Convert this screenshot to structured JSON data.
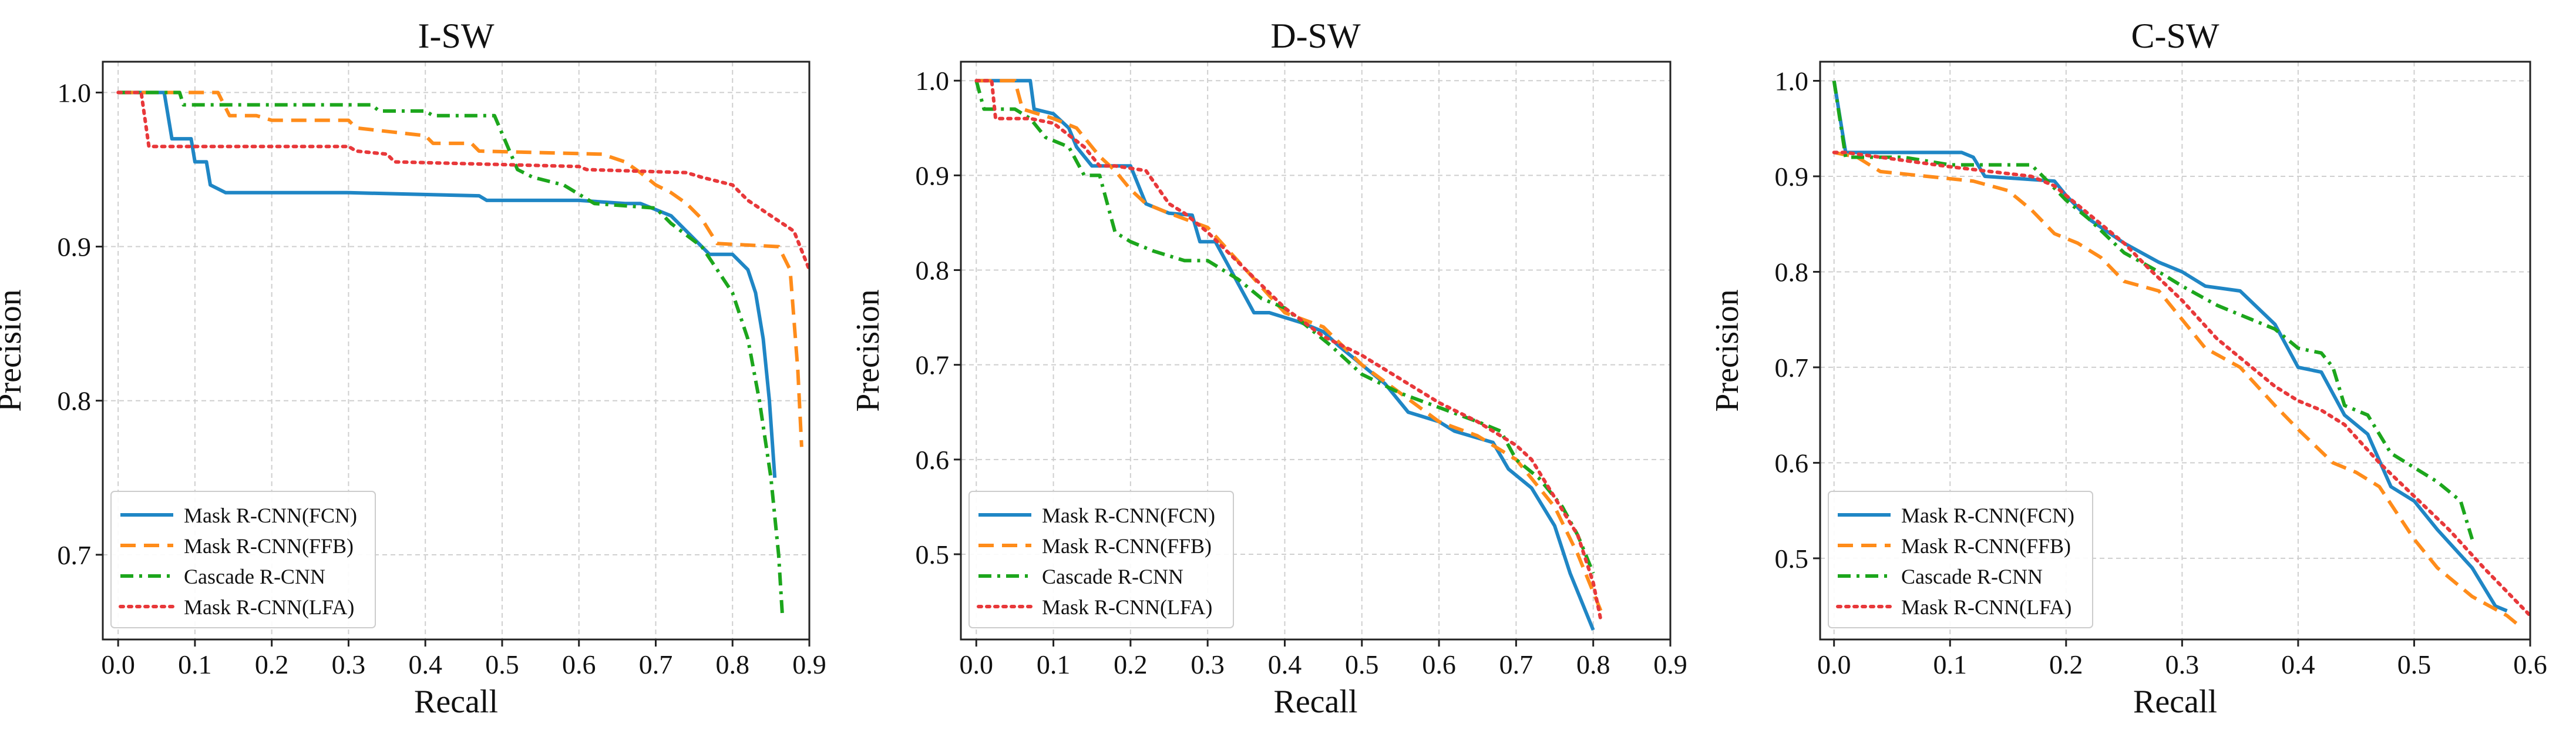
{
  "chart_data": [
    {
      "type": "line",
      "title": "I-SW",
      "xlabel": "Recall",
      "ylabel": "Precision",
      "xlim": [
        -0.02,
        0.9
      ],
      "ylim": [
        0.645,
        1.02
      ],
      "xticks": [
        0.0,
        0.1,
        0.2,
        0.3,
        0.4,
        0.5,
        0.6,
        0.7,
        0.8,
        0.9
      ],
      "xtick_labels": [
        "0.0",
        "0.1",
        "0.2",
        "0.3",
        "0.4",
        "0.5",
        "0.6",
        "0.7",
        "0.8",
        "0.9"
      ],
      "yticks": [
        0.7,
        0.8,
        0.9,
        1.0
      ],
      "ytick_labels": [
        "0.7",
        "0.8",
        "0.9",
        "1.0"
      ],
      "grid": true,
      "legend_position": "lower-left",
      "series": [
        {
          "name": "Mask R-CNN(FCN)",
          "color": "#1f86c5",
          "style": "solid",
          "x": [
            0.0,
            0.06,
            0.07,
            0.095,
            0.1,
            0.115,
            0.12,
            0.14,
            0.3,
            0.47,
            0.48,
            0.6,
            0.66,
            0.68,
            0.72,
            0.75,
            0.77,
            0.8,
            0.82,
            0.83,
            0.84,
            0.848,
            0.855
          ],
          "y": [
            1.0,
            1.0,
            0.97,
            0.97,
            0.955,
            0.955,
            0.94,
            0.935,
            0.935,
            0.933,
            0.93,
            0.93,
            0.928,
            0.928,
            0.92,
            0.905,
            0.895,
            0.895,
            0.885,
            0.87,
            0.84,
            0.8,
            0.75
          ]
        },
        {
          "name": "Mask R-CNN(FFB)",
          "color": "#ff8c1a",
          "style": "dashed",
          "x": [
            0.0,
            0.13,
            0.145,
            0.18,
            0.2,
            0.3,
            0.31,
            0.4,
            0.41,
            0.46,
            0.47,
            0.63,
            0.66,
            0.68,
            0.7,
            0.72,
            0.74,
            0.76,
            0.78,
            0.86,
            0.875,
            0.885,
            0.89
          ],
          "y": [
            1.0,
            1.0,
            0.985,
            0.985,
            0.982,
            0.982,
            0.977,
            0.972,
            0.967,
            0.967,
            0.962,
            0.96,
            0.955,
            0.948,
            0.94,
            0.935,
            0.928,
            0.918,
            0.902,
            0.9,
            0.885,
            0.82,
            0.77
          ]
        },
        {
          "name": "Cascade R-CNN",
          "color": "#1ca61c",
          "style": "dashdot",
          "x": [
            0.0,
            0.08,
            0.085,
            0.33,
            0.34,
            0.4,
            0.41,
            0.49,
            0.52,
            0.54,
            0.58,
            0.62,
            0.7,
            0.72,
            0.76,
            0.78,
            0.8,
            0.82,
            0.835,
            0.85,
            0.86,
            0.865
          ],
          "y": [
            1.0,
            1.0,
            0.992,
            0.992,
            0.988,
            0.988,
            0.985,
            0.985,
            0.95,
            0.945,
            0.94,
            0.928,
            0.925,
            0.915,
            0.9,
            0.885,
            0.87,
            0.84,
            0.8,
            0.75,
            0.7,
            0.66
          ]
        },
        {
          "name": "Mask R-CNN(LFA)",
          "color": "#e8383a",
          "style": "dotted",
          "x": [
            0.0,
            0.03,
            0.04,
            0.3,
            0.31,
            0.35,
            0.36,
            0.6,
            0.61,
            0.74,
            0.76,
            0.8,
            0.82,
            0.85,
            0.88,
            0.9
          ],
          "y": [
            1.0,
            1.0,
            0.965,
            0.965,
            0.962,
            0.96,
            0.955,
            0.952,
            0.95,
            0.948,
            0.945,
            0.94,
            0.93,
            0.92,
            0.91,
            0.885
          ]
        }
      ]
    },
    {
      "type": "line",
      "title": "D-SW",
      "xlabel": "Recall",
      "ylabel": "Precision",
      "xlim": [
        -0.02,
        0.9
      ],
      "ylim": [
        0.41,
        1.02
      ],
      "xticks": [
        0.0,
        0.1,
        0.2,
        0.3,
        0.4,
        0.5,
        0.6,
        0.7,
        0.8,
        0.9
      ],
      "xtick_labels": [
        "0.0",
        "0.1",
        "0.2",
        "0.3",
        "0.4",
        "0.5",
        "0.6",
        "0.7",
        "0.8",
        "0.9"
      ],
      "yticks": [
        0.5,
        0.6,
        0.7,
        0.8,
        0.9,
        1.0
      ],
      "ytick_labels": [
        "0.5",
        "0.6",
        "0.7",
        "0.8",
        "0.9",
        "1.0"
      ],
      "grid": true,
      "legend_position": "lower-left",
      "series": [
        {
          "name": "Mask R-CNN(FCN)",
          "color": "#1f86c5",
          "style": "solid",
          "x": [
            0.0,
            0.07,
            0.075,
            0.1,
            0.12,
            0.13,
            0.15,
            0.2,
            0.22,
            0.25,
            0.28,
            0.29,
            0.31,
            0.33,
            0.36,
            0.38,
            0.42,
            0.45,
            0.47,
            0.5,
            0.53,
            0.56,
            0.6,
            0.62,
            0.67,
            0.69,
            0.72,
            0.75,
            0.77,
            0.79,
            0.8
          ],
          "y": [
            1.0,
            1.0,
            0.97,
            0.965,
            0.95,
            0.93,
            0.91,
            0.91,
            0.87,
            0.86,
            0.858,
            0.83,
            0.83,
            0.8,
            0.755,
            0.755,
            0.745,
            0.735,
            0.72,
            0.7,
            0.68,
            0.65,
            0.64,
            0.63,
            0.618,
            0.59,
            0.57,
            0.53,
            0.48,
            0.44,
            0.42
          ]
        },
        {
          "name": "Mask R-CNN(FFB)",
          "color": "#ff8c1a",
          "style": "dashed",
          "x": [
            0.0,
            0.05,
            0.06,
            0.1,
            0.13,
            0.16,
            0.18,
            0.2,
            0.22,
            0.25,
            0.3,
            0.35,
            0.4,
            0.45,
            0.5,
            0.55,
            0.6,
            0.65,
            0.68,
            0.7,
            0.72,
            0.75,
            0.78,
            0.8,
            0.81
          ],
          "y": [
            1.0,
            1.0,
            0.97,
            0.96,
            0.95,
            0.92,
            0.905,
            0.885,
            0.87,
            0.86,
            0.845,
            0.8,
            0.755,
            0.74,
            0.7,
            0.67,
            0.64,
            0.625,
            0.61,
            0.6,
            0.58,
            0.55,
            0.5,
            0.46,
            0.44
          ]
        },
        {
          "name": "Cascade R-CNN",
          "color": "#1ca61c",
          "style": "dashdot",
          "x": [
            0.0,
            0.01,
            0.05,
            0.07,
            0.09,
            0.12,
            0.14,
            0.16,
            0.18,
            0.2,
            0.23,
            0.27,
            0.3,
            0.34,
            0.37,
            0.4,
            0.43,
            0.46,
            0.5,
            0.55,
            0.6,
            0.65,
            0.68,
            0.7,
            0.73,
            0.76,
            0.78,
            0.8
          ],
          "y": [
            1.0,
            0.97,
            0.97,
            0.96,
            0.94,
            0.93,
            0.9,
            0.9,
            0.84,
            0.83,
            0.82,
            0.81,
            0.81,
            0.79,
            0.77,
            0.76,
            0.74,
            0.72,
            0.69,
            0.67,
            0.655,
            0.64,
            0.63,
            0.6,
            0.58,
            0.55,
            0.52,
            0.48
          ]
        },
        {
          "name": "Mask R-CNN(LFA)",
          "color": "#e8383a",
          "style": "dotted",
          "x": [
            0.0,
            0.02,
            0.025,
            0.07,
            0.1,
            0.14,
            0.16,
            0.18,
            0.22,
            0.25,
            0.27,
            0.3,
            0.35,
            0.4,
            0.45,
            0.5,
            0.55,
            0.6,
            0.65,
            0.7,
            0.72,
            0.75,
            0.78,
            0.8,
            0.81
          ],
          "y": [
            1.0,
            1.0,
            0.96,
            0.96,
            0.955,
            0.93,
            0.91,
            0.91,
            0.905,
            0.87,
            0.86,
            0.84,
            0.8,
            0.76,
            0.73,
            0.71,
            0.685,
            0.66,
            0.64,
            0.615,
            0.6,
            0.56,
            0.52,
            0.47,
            0.43
          ]
        }
      ]
    },
    {
      "type": "line",
      "title": "C-SW",
      "xlabel": "Recall",
      "ylabel": "Precision",
      "xlim": [
        -0.012,
        0.6
      ],
      "ylim": [
        0.415,
        1.02
      ],
      "xticks": [
        0.0,
        0.1,
        0.2,
        0.3,
        0.4,
        0.5,
        0.6
      ],
      "xtick_labels": [
        "0.0",
        "0.1",
        "0.2",
        "0.3",
        "0.4",
        "0.5",
        "0.6"
      ],
      "yticks": [
        0.5,
        0.6,
        0.7,
        0.8,
        0.9,
        1.0
      ],
      "ytick_labels": [
        "0.5",
        "0.6",
        "0.7",
        "0.8",
        "0.9",
        "1.0"
      ],
      "grid": true,
      "legend_position": "lower-left",
      "series": [
        {
          "name": "Mask R-CNN(FCN)",
          "color": "#1f86c5",
          "style": "solid",
          "x": [
            0.0,
            0.01,
            0.11,
            0.12,
            0.13,
            0.19,
            0.2,
            0.22,
            0.25,
            0.28,
            0.3,
            0.32,
            0.35,
            0.38,
            0.4,
            0.42,
            0.44,
            0.46,
            0.48,
            0.5,
            0.52,
            0.55,
            0.57,
            0.58
          ],
          "y": [
            1.0,
            0.925,
            0.925,
            0.92,
            0.9,
            0.895,
            0.88,
            0.855,
            0.83,
            0.81,
            0.8,
            0.785,
            0.78,
            0.745,
            0.7,
            0.695,
            0.65,
            0.63,
            0.575,
            0.56,
            0.53,
            0.49,
            0.45,
            0.445
          ]
        },
        {
          "name": "Mask R-CNN(FFB)",
          "color": "#ff8c1a",
          "style": "dashed",
          "x": [
            0.0,
            0.02,
            0.04,
            0.08,
            0.12,
            0.15,
            0.17,
            0.19,
            0.21,
            0.23,
            0.25,
            0.28,
            0.3,
            0.32,
            0.35,
            0.38,
            0.4,
            0.43,
            0.45,
            0.47,
            0.5,
            0.52,
            0.55,
            0.58,
            0.59
          ],
          "y": [
            0.925,
            0.92,
            0.905,
            0.9,
            0.895,
            0.885,
            0.865,
            0.84,
            0.83,
            0.815,
            0.79,
            0.78,
            0.75,
            0.72,
            0.7,
            0.66,
            0.635,
            0.6,
            0.59,
            0.575,
            0.52,
            0.49,
            0.46,
            0.44,
            0.43
          ]
        },
        {
          "name": "Cascade R-CNN",
          "color": "#1ca61c",
          "style": "dashdot",
          "x": [
            0.0,
            0.01,
            0.06,
            0.1,
            0.17,
            0.18,
            0.2,
            0.22,
            0.25,
            0.28,
            0.3,
            0.33,
            0.36,
            0.38,
            0.4,
            0.42,
            0.43,
            0.44,
            0.46,
            0.48,
            0.5,
            0.52,
            0.54,
            0.55
          ],
          "y": [
            1.0,
            0.92,
            0.92,
            0.912,
            0.912,
            0.9,
            0.875,
            0.855,
            0.82,
            0.8,
            0.785,
            0.765,
            0.75,
            0.74,
            0.72,
            0.715,
            0.7,
            0.66,
            0.65,
            0.61,
            0.595,
            0.58,
            0.56,
            0.52
          ]
        },
        {
          "name": "Mask R-CNN(LFA)",
          "color": "#e8383a",
          "style": "dotted",
          "x": [
            0.0,
            0.01,
            0.1,
            0.17,
            0.19,
            0.22,
            0.25,
            0.27,
            0.3,
            0.33,
            0.36,
            0.38,
            0.4,
            0.42,
            0.44,
            0.47,
            0.5,
            0.53,
            0.56,
            0.58,
            0.6
          ],
          "y": [
            0.925,
            0.925,
            0.91,
            0.9,
            0.89,
            0.86,
            0.83,
            0.805,
            0.77,
            0.73,
            0.7,
            0.68,
            0.665,
            0.655,
            0.64,
            0.6,
            0.565,
            0.53,
            0.49,
            0.465,
            0.44
          ]
        }
      ]
    }
  ]
}
